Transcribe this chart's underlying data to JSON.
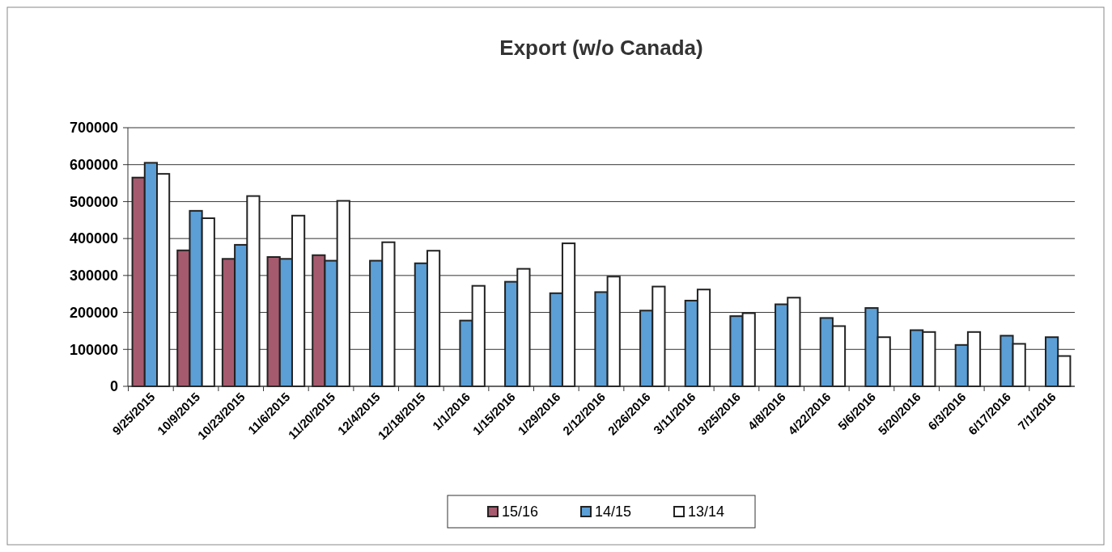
{
  "chart_data": {
    "type": "bar",
    "title": "Export (w/o Canada)",
    "categories": [
      "9/25/2015",
      "10/9/2015",
      "10/23/2015",
      "11/6/2015",
      "11/20/2015",
      "12/4/2015",
      "12/18/2015",
      "1/1/2016",
      "1/15/2016",
      "1/29/2016",
      "2/12/2016",
      "2/26/2016",
      "3/11/2016",
      "3/25/2016",
      "4/8/2016",
      "4/22/2016",
      "5/6/2016",
      "5/20/2016",
      "6/3/2016",
      "6/17/2016",
      "7/1/2016"
    ],
    "series": [
      {
        "name": "15/16",
        "color": "#a65a6e",
        "values": [
          565000,
          368000,
          345000,
          350000,
          355000,
          null,
          null,
          null,
          null,
          null,
          null,
          null,
          null,
          null,
          null,
          null,
          null,
          null,
          null,
          null,
          null
        ]
      },
      {
        "name": "14/15",
        "color": "#5b9fd6",
        "values": [
          605000,
          475000,
          383000,
          345000,
          340000,
          340000,
          333000,
          178000,
          283000,
          252000,
          255000,
          205000,
          232000,
          190000,
          222000,
          185000,
          212000,
          152000,
          112000,
          137000,
          133000
        ]
      },
      {
        "name": "13/14",
        "color": "#ffffff",
        "values": [
          575000,
          455000,
          515000,
          462000,
          502000,
          390000,
          367000,
          272000,
          318000,
          387000,
          297000,
          270000,
          262000,
          198000,
          240000,
          163000,
          133000,
          147000,
          147000,
          115000,
          82000
        ]
      }
    ],
    "ylim": [
      0,
      700000
    ],
    "yticks": [
      0,
      100000,
      200000,
      300000,
      400000,
      500000,
      600000,
      700000
    ],
    "grid": "y",
    "legend": "bottom"
  }
}
